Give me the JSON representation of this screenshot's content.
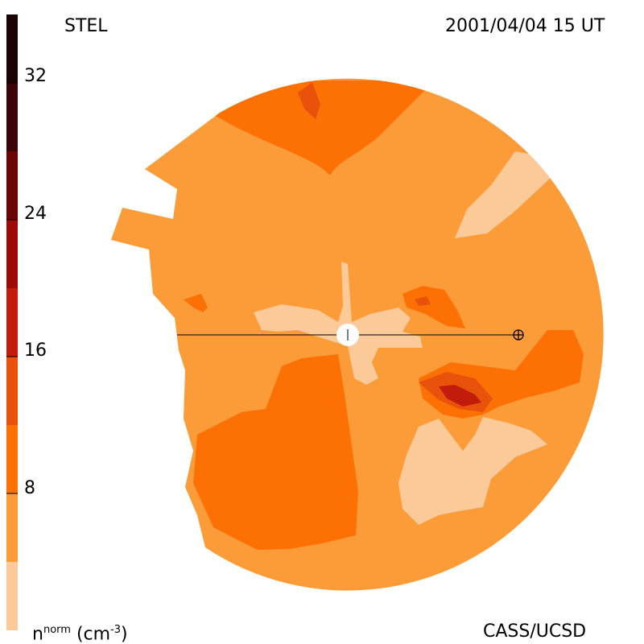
{
  "header": {
    "left_label": "STEL",
    "right_label": "2001/04/04 15 UT"
  },
  "footer": {
    "left_label_base": "n",
    "left_label_sup": "norm",
    "left_label_unit_open": "(cm",
    "left_label_unit_exp": "-3",
    "left_label_unit_close": ")",
    "right_label": "CASS/UCSD"
  },
  "colors": {
    "background": "#ffffff",
    "line": "#000000",
    "sun": "#ffffff"
  },
  "chart_data": {
    "type": "heatmap",
    "title": "",
    "description_of_marks": "Ecliptic-plane density map out to the orbit of Earth (Earth marked by circled plus, Sun at center)",
    "colorbar": {
      "label": "n^norm (cm^-3)",
      "range": [
        0,
        36
      ],
      "ticks": [
        8,
        16,
        24,
        32
      ],
      "tick_labels": [
        "8",
        "16",
        "24",
        "32"
      ],
      "bands": [
        {
          "from": 0,
          "to": 4,
          "color": "#fcc999"
        },
        {
          "from": 4,
          "to": 8,
          "color": "#fb9c38"
        },
        {
          "from": 8,
          "to": 12,
          "color": "#fd7004"
        },
        {
          "from": 12,
          "to": 16,
          "color": "#e8520a"
        },
        {
          "from": 16,
          "to": 20,
          "color": "#c31b0c"
        },
        {
          "from": 20,
          "to": 24,
          "color": "#9c0a06"
        },
        {
          "from": 24,
          "to": 28,
          "color": "#6b0604"
        },
        {
          "from": 28,
          "to": 32,
          "color": "#3c0404"
        },
        {
          "from": 32,
          "to": 36,
          "color": "#1c0202"
        }
      ]
    },
    "markers": [
      {
        "name": "Sun",
        "symbol": "filled white circle with tick"
      },
      {
        "name": "Earth",
        "symbol": "circled plus"
      }
    ]
  }
}
